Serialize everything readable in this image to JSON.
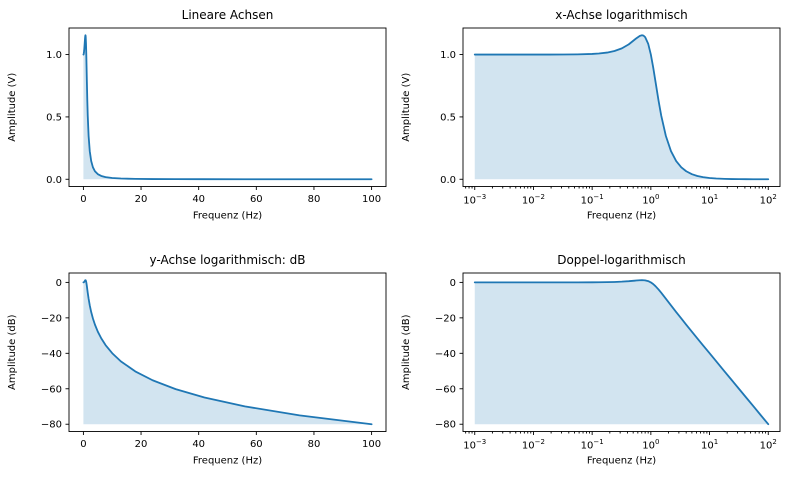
{
  "figure": {
    "background": "#ffffff",
    "line_color": "#1f77b4",
    "fill_color": "#1f77b4",
    "fill_opacity": 0.2,
    "spine_color": "#000000",
    "tick_color": "#000000",
    "text_color": "#000000",
    "title_font_size": 12,
    "label_font_size": 10,
    "tick_font_size": 10
  },
  "chart_data": [
    {
      "id": "lineare-achsen",
      "type": "line",
      "title": "Lineare Achsen",
      "xlabel": "Frequenz (Hz)",
      "ylabel": "Amplitude (V)",
      "xscale": "linear",
      "yscale": "linear",
      "grid": false,
      "legend": null,
      "xlim": [
        -5,
        105
      ],
      "ylim": [
        -0.058,
        1.213
      ],
      "xticks": [
        0,
        20,
        40,
        60,
        80,
        100
      ],
      "xtick_labels": [
        "0",
        "20",
        "40",
        "60",
        "80",
        "100"
      ],
      "yticks": [
        0.0,
        0.5,
        1.0
      ],
      "ytick_labels": [
        "0.0",
        "0.5",
        "1.0"
      ],
      "fill_to_min": true,
      "x": [
        0.001,
        0.0018,
        0.0032,
        0.0056,
        0.01,
        0.018,
        0.032,
        0.056,
        0.1,
        0.13,
        0.18,
        0.24,
        0.32,
        0.42,
        0.56,
        0.65,
        0.707,
        0.75,
        0.8,
        0.9,
        1.0,
        1.1,
        1.2,
        1.35,
        1.5,
        1.8,
        2.2,
        2.7,
        3.3,
        4.0,
        5.0,
        6.2,
        7.7,
        10,
        13,
        18,
        24,
        32,
        42,
        56,
        75,
        100
      ],
      "y": [
        1.0,
        1.0,
        1.0,
        1.0,
        1.0,
        1.0002,
        1.0005,
        1.0016,
        1.005,
        1.0084,
        1.016,
        1.0283,
        1.0494,
        1.0817,
        1.1288,
        1.1501,
        1.1547,
        1.1517,
        1.1399,
        1.0872,
        1.0,
        0.893,
        0.7824,
        0.6326,
        0.5121,
        0.348,
        0.226,
        0.1461,
        0.0959,
        0.0644,
        0.0408,
        0.0264,
        0.017,
        0.0101,
        0.0059,
        0.0031,
        0.0017,
        0.001,
        0.0006,
        0.0003,
        0.0002,
        0.0001
      ]
    },
    {
      "id": "x-achse-logarithmisch",
      "type": "line",
      "title": "x-Achse logarithmisch",
      "xlabel": "Frequenz (Hz)",
      "ylabel": "Amplitude (V)",
      "xscale": "log",
      "yscale": "linear",
      "grid": false,
      "legend": null,
      "xlim_log10": [
        -3.2,
        2.2
      ],
      "ylim": [
        -0.058,
        1.213
      ],
      "xticks_log10": [
        -3,
        -2,
        -1,
        0,
        1,
        2
      ],
      "xtick_exponent_labels": [
        "−3",
        "−2",
        "−1",
        "0",
        "1",
        "2"
      ],
      "yticks": [
        0.0,
        0.5,
        1.0
      ],
      "ytick_labels": [
        "0.0",
        "0.5",
        "1.0"
      ],
      "fill_to_min": true,
      "x": [
        0.001,
        0.0018,
        0.0032,
        0.0056,
        0.01,
        0.018,
        0.032,
        0.056,
        0.1,
        0.13,
        0.18,
        0.24,
        0.32,
        0.42,
        0.56,
        0.65,
        0.707,
        0.75,
        0.8,
        0.9,
        1.0,
        1.1,
        1.2,
        1.35,
        1.5,
        1.8,
        2.2,
        2.7,
        3.3,
        4.0,
        5.0,
        6.2,
        7.7,
        10,
        13,
        18,
        24,
        32,
        42,
        56,
        75,
        100
      ],
      "y": [
        1.0,
        1.0,
        1.0,
        1.0,
        1.0,
        1.0002,
        1.0005,
        1.0016,
        1.005,
        1.0084,
        1.016,
        1.0283,
        1.0494,
        1.0817,
        1.1288,
        1.1501,
        1.1547,
        1.1517,
        1.1399,
        1.0872,
        1.0,
        0.893,
        0.7824,
        0.6326,
        0.5121,
        0.348,
        0.226,
        0.1461,
        0.0959,
        0.0644,
        0.0408,
        0.0264,
        0.017,
        0.0101,
        0.0059,
        0.0031,
        0.0017,
        0.001,
        0.0006,
        0.0003,
        0.0002,
        0.0001
      ]
    },
    {
      "id": "y-achse-logarithmisch-db",
      "type": "line",
      "title": "y-Achse logarithmisch: dB",
      "xlabel": "Frequenz (Hz)",
      "ylabel": "Amplitude (dB)",
      "xscale": "linear",
      "yscale": "linear",
      "grid": false,
      "legend": null,
      "xlim": [
        -5,
        105
      ],
      "ylim": [
        -84.1,
        5.3
      ],
      "xticks": [
        0,
        20,
        40,
        60,
        80,
        100
      ],
      "xtick_labels": [
        "0",
        "20",
        "40",
        "60",
        "80",
        "100"
      ],
      "yticks": [
        0,
        -20,
        -40,
        -60,
        -80
      ],
      "ytick_labels": [
        "0",
        "−20",
        "−40",
        "−60",
        "−80"
      ],
      "fill_to_min": true,
      "x": [
        0.001,
        0.0018,
        0.0032,
        0.0056,
        0.01,
        0.018,
        0.032,
        0.056,
        0.1,
        0.13,
        0.18,
        0.24,
        0.32,
        0.42,
        0.56,
        0.65,
        0.707,
        0.75,
        0.8,
        0.9,
        1.0,
        1.1,
        1.2,
        1.35,
        1.5,
        1.8,
        2.2,
        2.7,
        3.3,
        4.0,
        5.0,
        6.2,
        7.7,
        10,
        13,
        18,
        24,
        32,
        42,
        56,
        75,
        100
      ],
      "y": [
        0.0,
        0.0,
        0.0,
        0.0,
        0.0,
        0.0,
        0.0,
        0.01,
        0.04,
        0.07,
        0.14,
        0.24,
        0.42,
        0.68,
        1.05,
        1.21,
        1.25,
        1.23,
        1.14,
        0.73,
        0.0,
        -0.98,
        -2.13,
        -3.98,
        -5.81,
        -9.17,
        -12.92,
        -16.71,
        -20.36,
        -23.82,
        -27.79,
        -31.58,
        -35.39,
        -39.96,
        -44.53,
        -50.2,
        -55.2,
        -60.2,
        -64.93,
        -69.92,
        -75.0,
        -80.0
      ]
    },
    {
      "id": "doppel-logarithmisch",
      "type": "line",
      "title": "Doppel-logarithmisch",
      "xlabel": "Frequenz (Hz)",
      "ylabel": "Amplitude (dB)",
      "xscale": "log",
      "yscale": "linear",
      "grid": false,
      "legend": null,
      "xlim_log10": [
        -3.2,
        2.2
      ],
      "ylim": [
        -84.1,
        5.3
      ],
      "xticks_log10": [
        -3,
        -2,
        -1,
        0,
        1,
        2
      ],
      "xtick_exponent_labels": [
        "−3",
        "−2",
        "−1",
        "0",
        "1",
        "2"
      ],
      "yticks": [
        0,
        -20,
        -40,
        -60,
        -80
      ],
      "ytick_labels": [
        "0",
        "−20",
        "−40",
        "−60",
        "−80"
      ],
      "fill_to_min": true,
      "x": [
        0.001,
        0.0018,
        0.0032,
        0.0056,
        0.01,
        0.018,
        0.032,
        0.056,
        0.1,
        0.13,
        0.18,
        0.24,
        0.32,
        0.42,
        0.56,
        0.65,
        0.707,
        0.75,
        0.8,
        0.9,
        1.0,
        1.1,
        1.2,
        1.35,
        1.5,
        1.8,
        2.2,
        2.7,
        3.3,
        4.0,
        5.0,
        6.2,
        7.7,
        10,
        13,
        18,
        24,
        32,
        42,
        56,
        75,
        100
      ],
      "y": [
        0.0,
        0.0,
        0.0,
        0.0,
        0.0,
        0.0,
        0.0,
        0.01,
        0.04,
        0.07,
        0.14,
        0.24,
        0.42,
        0.68,
        1.05,
        1.21,
        1.25,
        1.23,
        1.14,
        0.73,
        0.0,
        -0.98,
        -2.13,
        -3.98,
        -5.81,
        -9.17,
        -12.92,
        -16.71,
        -20.36,
        -23.82,
        -27.79,
        -31.58,
        -35.39,
        -39.96,
        -44.53,
        -50.2,
        -55.2,
        -60.2,
        -64.93,
        -69.92,
        -75.0,
        -80.0
      ]
    }
  ]
}
